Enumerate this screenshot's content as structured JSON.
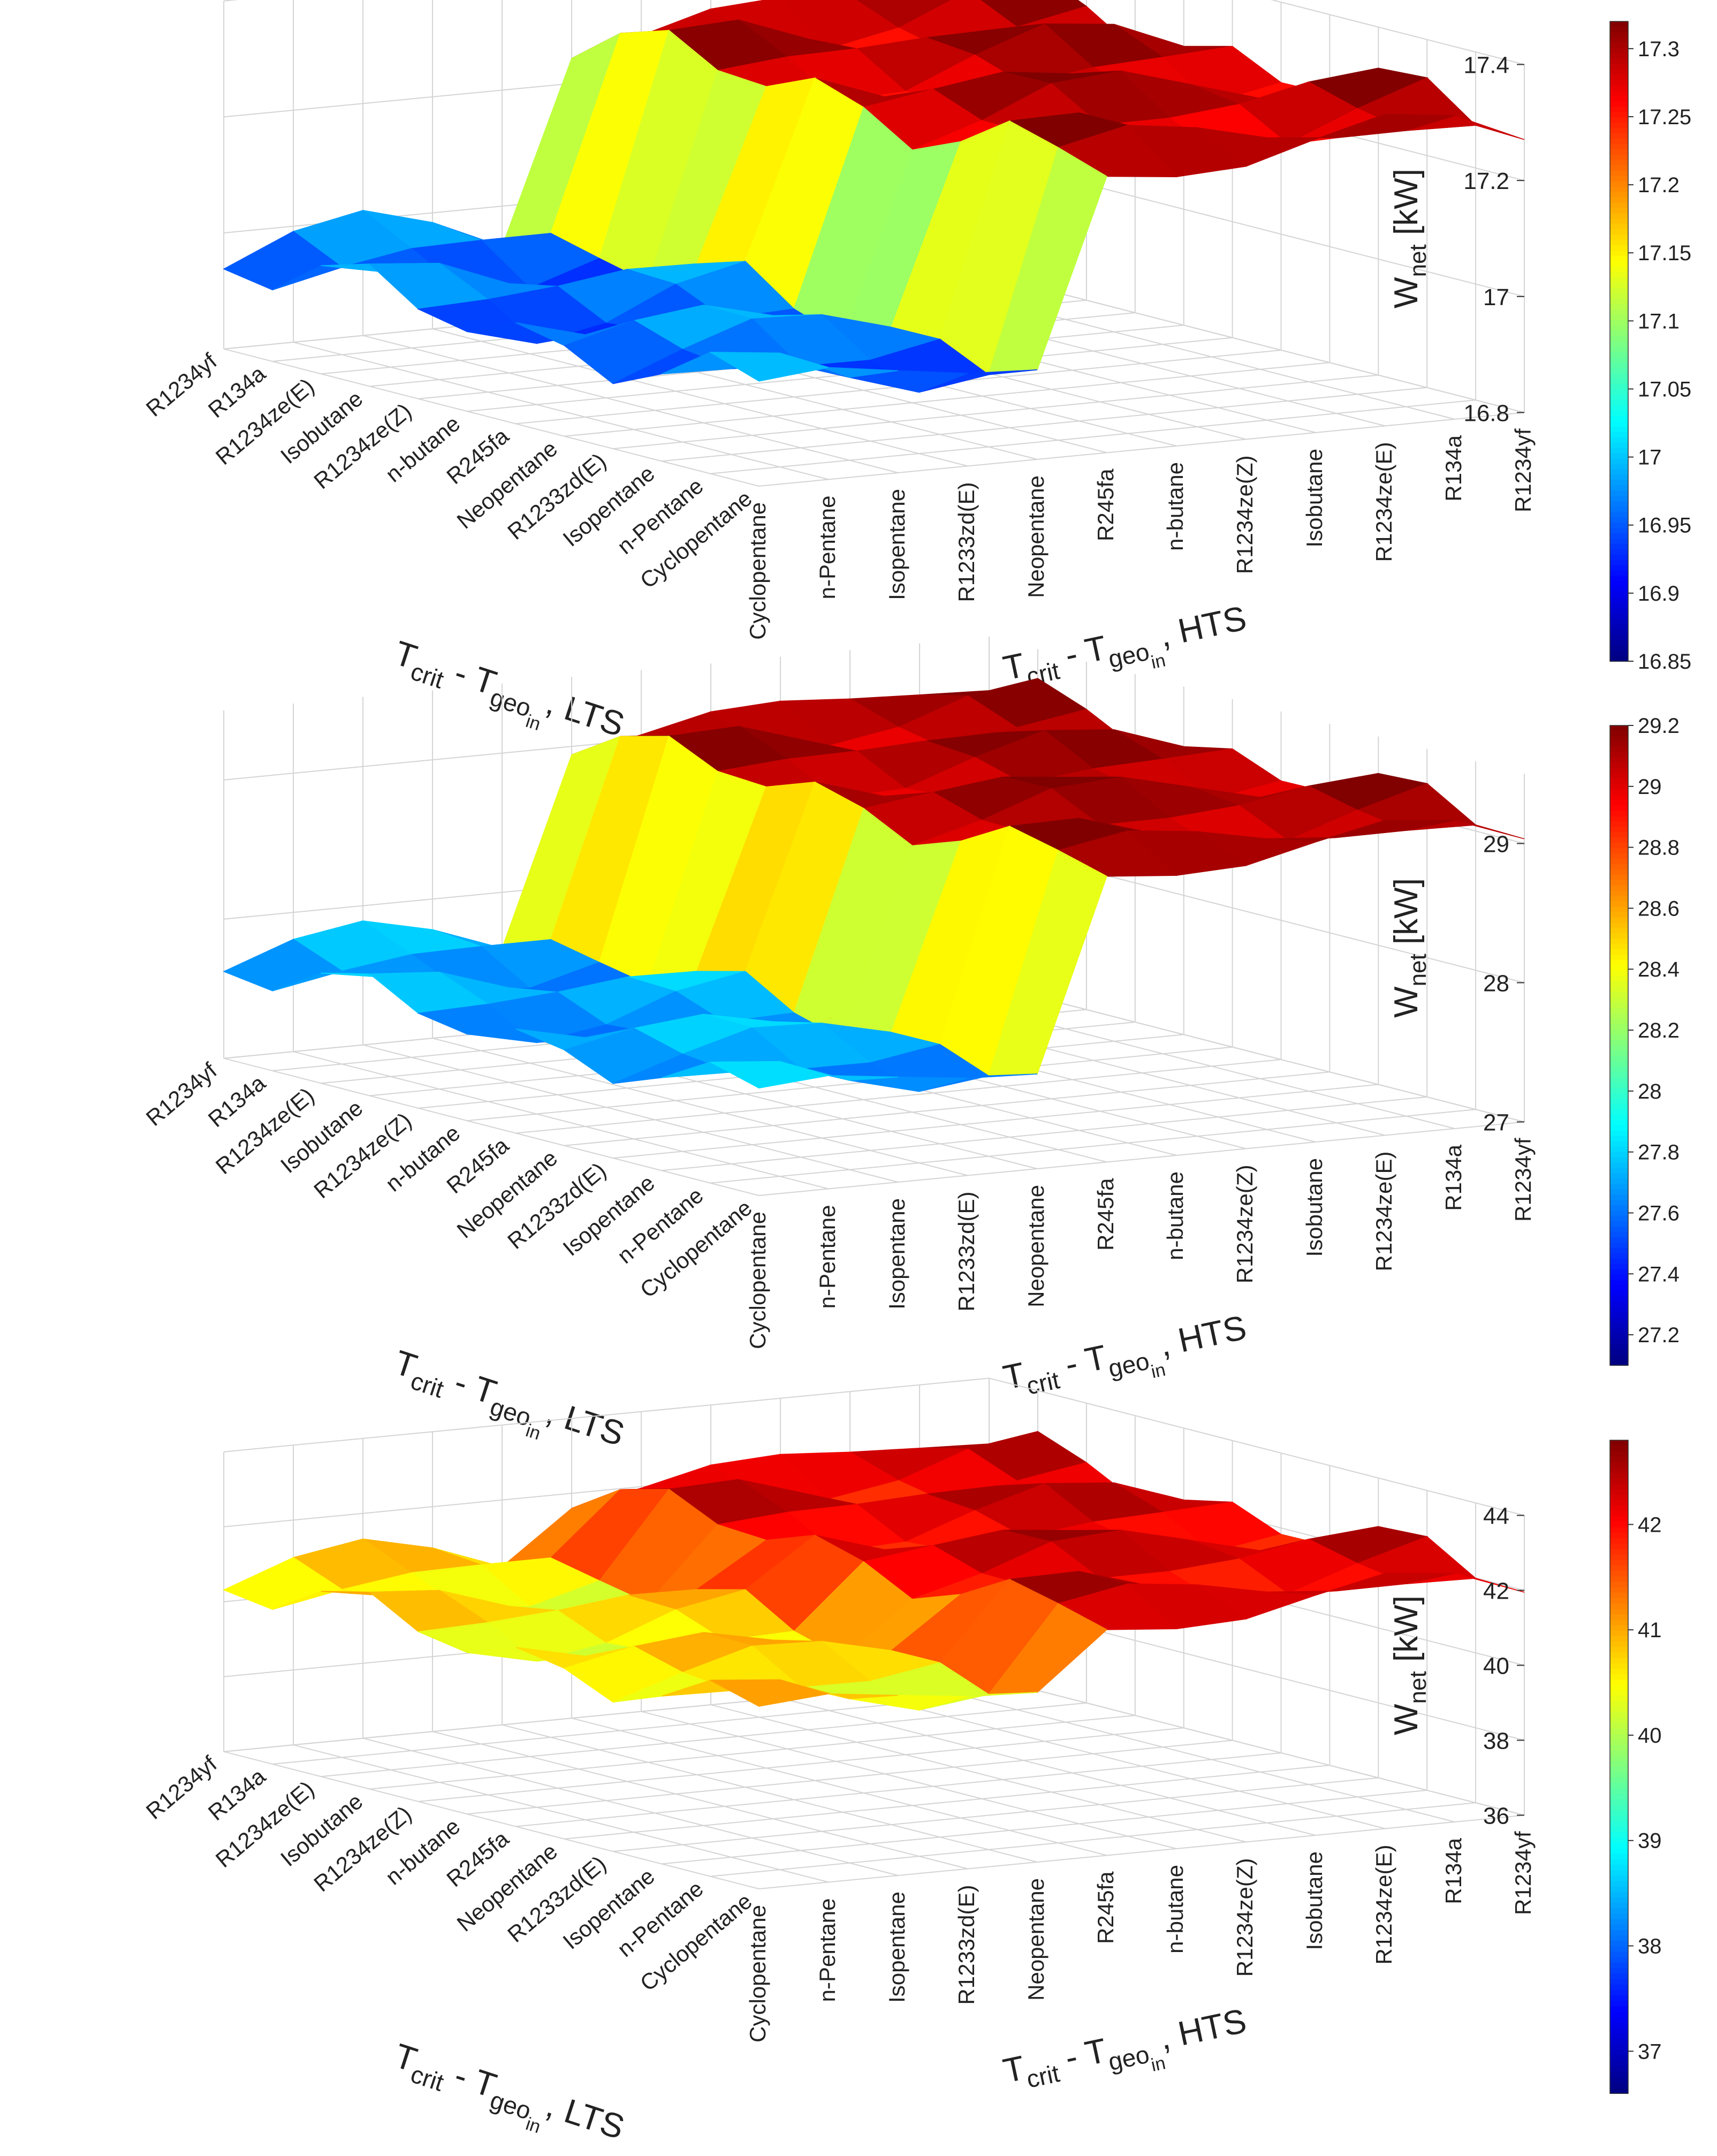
{
  "chart_data": [
    {
      "type": "surface3d",
      "zlabel_main": "W",
      "zlabel_sub": "net",
      "zlabel_unit": "[kW]",
      "x_categories": [
        "Cyclopentane",
        "n-Pentane",
        "Isopentane",
        "R1233zd(E)",
        "Neopentane",
        "R245fa",
        "n-butane",
        "R1234ze(Z)",
        "Isobutane",
        "R1234ze(E)",
        "R134a",
        "R1234yf"
      ],
      "y_categories": [
        "Cyclopentane",
        "n-Pentane",
        "Isopentane",
        "R1233zd(E)",
        "Neopentane",
        "R245fa",
        "n-butane",
        "R1234ze(Z)",
        "Isobutane",
        "R1234ze(E)",
        "R134a",
        "R1234yf"
      ],
      "xlabel": {
        "T": "T",
        "crit": "crit",
        "dash": " - T",
        "geo": "geo",
        "in": "in",
        "suffix": ", LTS"
      },
      "ylabel": {
        "T": "T",
        "crit": "crit",
        "dash": " - T",
        "geo": "geo",
        "in": "in",
        "suffix": ", HTS"
      },
      "zlim": [
        16.8,
        17.4
      ],
      "zticks": [
        "16.8",
        "17",
        "17.2",
        "17.4"
      ],
      "clim": [
        16.85,
        17.32
      ],
      "cticks": [
        "16.85",
        "16.9",
        "16.95",
        "17",
        "17.05",
        "17.1",
        "17.15",
        "17.2",
        "17.25",
        "17.3"
      ],
      "step_at": 5,
      "low_level": 16.96,
      "high_level": 17.29,
      "ripple": 0.035
    },
    {
      "type": "surface3d",
      "zlabel_main": "W",
      "zlabel_sub": "net",
      "zlabel_unit": "[kW]",
      "x_categories": [
        "Cyclopentane",
        "n-Pentane",
        "Isopentane",
        "R1233zd(E)",
        "Neopentane",
        "R245fa",
        "n-butane",
        "R1234ze(Z)",
        "Isobutane",
        "R1234ze(E)",
        "R134a",
        "R1234yf"
      ],
      "y_categories": [
        "Cyclopentane",
        "n-Pentane",
        "Isopentane",
        "R1233zd(E)",
        "Neopentane",
        "R245fa",
        "n-butane",
        "R1234ze(Z)",
        "Isobutane",
        "R1234ze(E)",
        "R134a",
        "R1234yf"
      ],
      "xlabel": {
        "T": "T",
        "crit": "crit",
        "dash": " - T",
        "geo": "geo",
        "in": "in",
        "suffix": ", LTS"
      },
      "ylabel": {
        "T": "T",
        "crit": "crit",
        "dash": " - T",
        "geo": "geo",
        "in": "in",
        "suffix": ", HTS"
      },
      "zlim": [
        27,
        29.5
      ],
      "zticks": [
        "27",
        "28",
        "29"
      ],
      "clim": [
        27.1,
        29.2
      ],
      "cticks": [
        "27.2",
        "27.4",
        "27.6",
        "27.8",
        "28",
        "28.2",
        "28.4",
        "28.6",
        "28.8",
        "29",
        "29.2"
      ],
      "step_at": 5,
      "low_level": 27.7,
      "high_level": 29.1,
      "ripple": 0.12
    },
    {
      "type": "surface3d",
      "zlabel_main": "W",
      "zlabel_sub": "net",
      "zlabel_unit": "[kW]",
      "x_categories": [
        "Cyclopentane",
        "n-Pentane",
        "Isopentane",
        "R1233zd(E)",
        "Neopentane",
        "R245fa",
        "n-butane",
        "R1234ze(Z)",
        "Isobutane",
        "R1234ze(E)",
        "R134a",
        "R1234yf"
      ],
      "y_categories": [
        "Cyclopentane",
        "n-Pentane",
        "Isopentane",
        "R1233zd(E)",
        "Neopentane",
        "R245fa",
        "n-butane",
        "R1234ze(Z)",
        "Isobutane",
        "R1234ze(E)",
        "R134a",
        "R1234yf"
      ],
      "xlabel": {
        "T": "T",
        "crit": "crit",
        "dash": " - T",
        "geo": "geo",
        "in": "in",
        "suffix": ", LTS"
      },
      "ylabel": {
        "T": "T",
        "crit": "crit",
        "dash": " - T",
        "geo": "geo",
        "in": "in",
        "suffix": ", HTS"
      },
      "zlim": [
        36,
        44
      ],
      "zticks": [
        "36",
        "38",
        "40",
        "42",
        "44"
      ],
      "clim": [
        36.6,
        42.8
      ],
      "cticks": [
        "37",
        "38",
        "39",
        "40",
        "41",
        "42"
      ],
      "step_at": 5,
      "low_level": 40.6,
      "high_level": 42.2,
      "ripple": 0.45
    }
  ]
}
